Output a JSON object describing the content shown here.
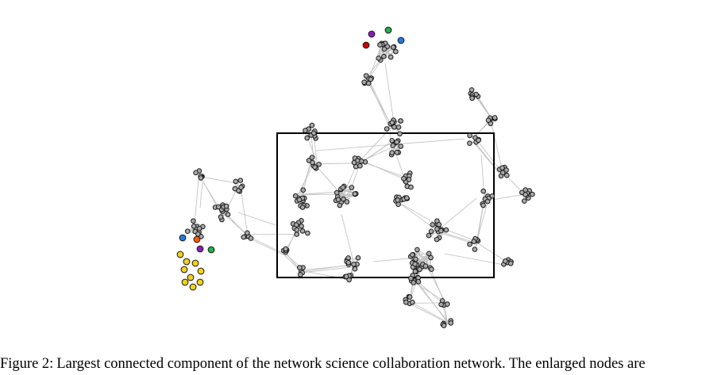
{
  "caption": {
    "label": "Figure 2:",
    "text": "Largest connected component of the network science collaboration network. The enlarged nodes are"
  },
  "colors": {
    "node_fill": "#a9a9a9",
    "node_stroke": "#1a1a1a",
    "edge": "#bdbdbd",
    "highlight_red": "#d10000",
    "highlight_purple": "#8a1fb5",
    "highlight_green": "#22b04a",
    "highlight_blue": "#1e7be0",
    "highlight_orange": "#ff5a00",
    "highlight_yellow": "#f2d21b"
  }
}
